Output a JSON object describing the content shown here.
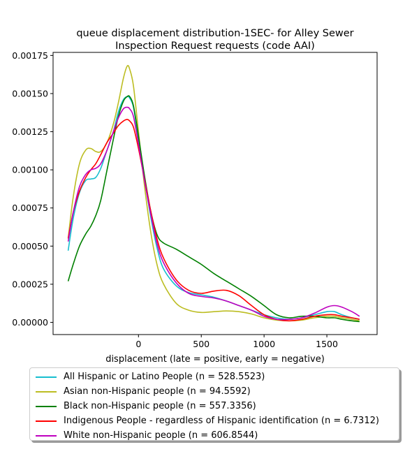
{
  "chart_data": {
    "type": "line",
    "title": "queue displacement distribution-1SEC-  for Alley Sewer\nInspection Request  requests (code AAI)",
    "xlabel": "displacement (late = positive, early = negative)",
    "ylabel": "",
    "xlim": [
      -680,
      1900
    ],
    "ylim": [
      -8e-05,
      0.00177
    ],
    "xticks": [
      0,
      500,
      1000,
      1500
    ],
    "xtick_labels": [
      "0",
      "500",
      "1000",
      "1500"
    ],
    "yticks": [
      0.0,
      0.00025,
      0.0005,
      0.00075,
      0.001,
      0.00125,
      0.0015,
      0.00175
    ],
    "ytick_labels": [
      "0.00000",
      "0.00025",
      "0.00050",
      "0.00075",
      "0.00100",
      "0.00125",
      "0.00150",
      "0.00175"
    ],
    "grid": false,
    "legend_position": "below-plot",
    "series": [
      {
        "name": "All Hispanic or Latino People (n = 528.5523)",
        "color": "#17becf",
        "x": [
          -560,
          -520,
          -470,
          -420,
          -380,
          -340,
          -300,
          -250,
          -200,
          -160,
          -120,
          -90,
          -70,
          -40,
          0,
          50,
          100,
          150,
          200,
          300,
          400,
          500,
          600,
          700,
          800,
          900,
          1000,
          1100,
          1200,
          1300,
          1400,
          1500,
          1560,
          1620,
          1700,
          1760
        ],
        "y": [
          0.00047,
          0.00068,
          0.00085,
          0.00093,
          0.00094,
          0.00095,
          0.00101,
          0.00113,
          0.00125,
          0.00138,
          0.00146,
          0.00148,
          0.00147,
          0.00141,
          0.0012,
          0.00093,
          0.00068,
          0.00048,
          0.00035,
          0.00024,
          0.000195,
          0.00018,
          0.000165,
          0.00014,
          0.00011,
          8e-05,
          5e-05,
          3e-05,
          2e-05,
          3e-05,
          5e-05,
          7e-05,
          7e-05,
          5e-05,
          3e-05,
          2e-05
        ]
      },
      {
        "name": "Asian non-Hispanic people (n = 94.5592)",
        "color": "#bcbd22",
        "x": [
          -560,
          -520,
          -470,
          -420,
          -380,
          -340,
          -300,
          -250,
          -200,
          -160,
          -120,
          -90,
          -70,
          -40,
          0,
          50,
          100,
          150,
          200,
          300,
          400,
          500,
          600,
          700,
          800,
          900,
          1000,
          1100,
          1200,
          1300,
          1400,
          1500,
          1560,
          1620,
          1700,
          1760
        ],
        "y": [
          0.00055,
          0.00082,
          0.00104,
          0.00113,
          0.00114,
          0.00112,
          0.00112,
          0.00118,
          0.0013,
          0.00144,
          0.0016,
          0.00168,
          0.00166,
          0.00155,
          0.00125,
          0.00088,
          0.00058,
          0.00037,
          0.00025,
          0.000125,
          8e-05,
          6.5e-05,
          7e-05,
          7.5e-05,
          7e-05,
          5.5e-05,
          3e-05,
          1.5e-05,
          1e-05,
          1.5e-05,
          3e-05,
          4e-05,
          4e-05,
          3e-05,
          2e-05,
          1e-05
        ]
      },
      {
        "name": "Black non-Hispanic people (n = 557.3356)",
        "color": "#008000",
        "x": [
          -560,
          -520,
          -470,
          -420,
          -380,
          -340,
          -300,
          -250,
          -200,
          -160,
          -120,
          -90,
          -70,
          -40,
          0,
          50,
          100,
          150,
          200,
          300,
          400,
          500,
          600,
          700,
          800,
          900,
          1000,
          1100,
          1200,
          1300,
          1400,
          1500,
          1560,
          1620,
          1700,
          1760
        ],
        "y": [
          0.00027,
          0.00038,
          0.0005,
          0.00058,
          0.00063,
          0.0007,
          0.0008,
          0.001,
          0.0012,
          0.00135,
          0.00145,
          0.00148,
          0.00148,
          0.00142,
          0.00122,
          0.00095,
          0.00072,
          0.00057,
          0.00052,
          0.00048,
          0.00043,
          0.00038,
          0.00032,
          0.00027,
          0.00022,
          0.00017,
          0.00011,
          5e-05,
          3e-05,
          4e-05,
          4e-05,
          3e-05,
          3e-05,
          2e-05,
          1e-05,
          5e-06
        ]
      },
      {
        "name": "Indigenous People - regardless of Hispanic identification (n = 6.7312)",
        "color": "#ff0000",
        "x": [
          -560,
          -520,
          -470,
          -420,
          -380,
          -340,
          -300,
          -250,
          -200,
          -160,
          -120,
          -90,
          -70,
          -40,
          0,
          50,
          100,
          150,
          200,
          300,
          400,
          500,
          600,
          700,
          800,
          900,
          1000,
          1100,
          1200,
          1300,
          1400,
          1500,
          1560,
          1620,
          1700,
          1760
        ],
        "y": [
          0.00055,
          0.00072,
          0.00086,
          0.00095,
          0.001,
          0.00104,
          0.0011,
          0.00118,
          0.00124,
          0.00129,
          0.00132,
          0.00133,
          0.00132,
          0.00128,
          0.00114,
          0.00093,
          0.00072,
          0.00054,
          0.00042,
          0.00028,
          0.00021,
          0.00019,
          0.000205,
          0.00021,
          0.000175,
          0.00011,
          5e-05,
          2e-05,
          1e-05,
          2e-05,
          4e-05,
          5e-05,
          5e-05,
          4e-05,
          3e-05,
          2e-05
        ]
      },
      {
        "name": "White non-Hispanic people (n = 606.8544)",
        "color": "#bf00bf",
        "x": [
          -560,
          -520,
          -470,
          -420,
          -380,
          -340,
          -300,
          -250,
          -200,
          -160,
          -120,
          -90,
          -70,
          -40,
          0,
          50,
          100,
          150,
          200,
          300,
          400,
          500,
          600,
          700,
          800,
          900,
          1000,
          1100,
          1200,
          1300,
          1400,
          1500,
          1560,
          1620,
          1700,
          1760
        ],
        "y": [
          0.00053,
          0.00072,
          0.00089,
          0.00097,
          0.001,
          0.00101,
          0.00104,
          0.00113,
          0.00125,
          0.00134,
          0.0014,
          0.00141,
          0.0014,
          0.00135,
          0.00117,
          0.00092,
          0.0007,
          0.00051,
          0.00039,
          0.00026,
          0.00019,
          0.00017,
          0.00016,
          0.00014,
          0.00011,
          8e-05,
          4e-05,
          2e-05,
          2e-05,
          3e-05,
          6e-05,
          0.0001,
          0.00011,
          0.0001,
          7e-05,
          4e-05
        ]
      }
    ]
  }
}
